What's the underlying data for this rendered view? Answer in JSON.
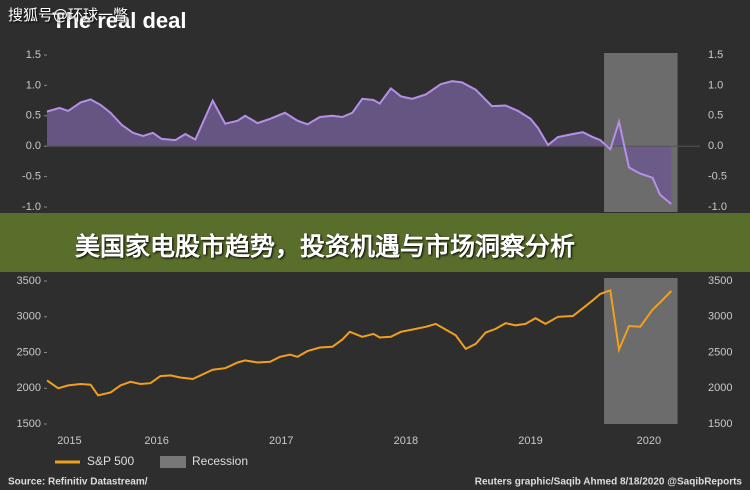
{
  "watermark": "搜狐号@环球一瞥",
  "banner": "美国家电股市趋势，投资机遇与市场洞察分析",
  "source": "Source: Refinitiv Datastream/",
  "credit": "Reuters graphic/Saqib Ahmed 8/18/2020 @SaqibReports",
  "chart_data": [
    {
      "type": "area",
      "title": "The real deal",
      "x": [
        2015.62,
        2015.72,
        2015.79,
        2015.89,
        2015.97,
        2016.05,
        2016.13,
        2016.22,
        2016.31,
        2016.39,
        2016.47,
        2016.54,
        2016.65,
        2016.73,
        2016.81,
        2016.95,
        2017.05,
        2017.15,
        2017.21,
        2017.31,
        2017.41,
        2017.53,
        2017.63,
        2017.71,
        2017.81,
        2017.91,
        2017.99,
        2018.07,
        2018.15,
        2018.24,
        2018.29,
        2018.38,
        2018.46,
        2018.55,
        2018.66,
        2018.78,
        2018.87,
        2018.95,
        2019.06,
        2019.19,
        2019.3,
        2019.4,
        2019.5,
        2019.56,
        2019.64,
        2019.72,
        2019.84,
        2019.92,
        2020.0,
        2020.06,
        2020.14,
        2020.21,
        2020.29,
        2020.38,
        2020.48,
        2020.54,
        2020.63
      ],
      "series": [
        {
          "color": "#b690e6",
          "fill": "#6c5a8c",
          "values": [
            0.57,
            0.63,
            0.58,
            0.72,
            0.77,
            0.68,
            0.55,
            0.35,
            0.22,
            0.17,
            0.22,
            0.12,
            0.1,
            0.2,
            0.11,
            0.75,
            0.37,
            0.42,
            0.5,
            0.38,
            0.45,
            0.55,
            0.42,
            0.36,
            0.48,
            0.5,
            0.48,
            0.55,
            0.78,
            0.76,
            0.7,
            0.95,
            0.82,
            0.78,
            0.85,
            1.02,
            1.07,
            1.05,
            0.93,
            0.66,
            0.67,
            0.58,
            0.45,
            0.3,
            0.02,
            0.15,
            0.2,
            0.23,
            0.15,
            0.1,
            -0.05,
            0.4,
            -0.35,
            -0.45,
            -0.52,
            -0.8,
            -0.95
          ]
        }
      ],
      "shaded_regions": [
        {
          "x": [
            2020.09,
            2020.68
          ],
          "color": "#777777"
        }
      ],
      "xlim": [
        2015.62,
        2020.86
      ],
      "xticks": [
        {
          "value": 2015.8,
          "label": "2015"
        },
        {
          "value": 2016.5,
          "label": "2016"
        },
        {
          "value": 2017.5,
          "label": "2017"
        },
        {
          "value": 2018.5,
          "label": "2018"
        },
        {
          "value": 2019.5,
          "label": "2019"
        },
        {
          "value": 2020.45,
          "label": "2020"
        }
      ],
      "ylim": [
        -1.0,
        1.5
      ],
      "yticks": [
        {
          "value": 1.5,
          "label": "1.5"
        },
        {
          "value": 1.0,
          "label": "1.0"
        },
        {
          "value": 0.5,
          "label": "0.5"
        },
        {
          "value": 0,
          "label": "0.0"
        },
        {
          "value": -0.5,
          "label": "-0.5"
        },
        {
          "value": -1.0,
          "label": "-1.0"
        }
      ],
      "right_axis": true
    },
    {
      "type": "line",
      "x": [
        2015.62,
        2015.71,
        2015.79,
        2015.89,
        2015.97,
        2016.03,
        2016.13,
        2016.21,
        2016.29,
        2016.37,
        2016.45,
        2016.53,
        2016.61,
        2016.69,
        2016.79,
        2016.95,
        2017.05,
        2017.15,
        2017.21,
        2017.31,
        2017.41,
        2017.49,
        2017.57,
        2017.63,
        2017.71,
        2017.81,
        2017.91,
        2017.99,
        2018.05,
        2018.15,
        2018.24,
        2018.29,
        2018.38,
        2018.46,
        2018.55,
        2018.66,
        2018.74,
        2018.82,
        2018.9,
        2018.98,
        2019.06,
        2019.14,
        2019.22,
        2019.3,
        2019.38,
        2019.46,
        2019.54,
        2019.62,
        2019.72,
        2019.84,
        2019.92,
        2020.0,
        2020.06,
        2020.14,
        2020.21,
        2020.29,
        2020.38,
        2020.48,
        2020.54,
        2020.63
      ],
      "series": [
        {
          "name": "S&P 500",
          "color": "#f0a01e",
          "values": [
            2110,
            2000,
            2040,
            2060,
            2050,
            1900,
            1940,
            2040,
            2090,
            2060,
            2070,
            2170,
            2180,
            2150,
            2130,
            2260,
            2280,
            2360,
            2390,
            2360,
            2370,
            2440,
            2470,
            2440,
            2520,
            2570,
            2580,
            2680,
            2790,
            2720,
            2760,
            2710,
            2720,
            2790,
            2820,
            2860,
            2900,
            2820,
            2740,
            2550,
            2620,
            2780,
            2830,
            2910,
            2880,
            2900,
            2980,
            2900,
            3000,
            3010,
            3120,
            3230,
            3320,
            3370,
            2540,
            2870,
            2860,
            3100,
            3200,
            3360
          ]
        }
      ],
      "shaded_regions": [
        {
          "name": "Recession",
          "x": [
            2020.09,
            2020.68
          ],
          "color": "#777777"
        }
      ],
      "xlim": [
        2015.62,
        2020.86
      ],
      "xticks": [
        {
          "value": 2015.8,
          "label": "2015"
        },
        {
          "value": 2016.5,
          "label": "2016"
        },
        {
          "value": 2017.5,
          "label": "2017"
        },
        {
          "value": 2018.5,
          "label": "2018"
        },
        {
          "value": 2019.5,
          "label": "2019"
        },
        {
          "value": 2020.45,
          "label": "2020"
        }
      ],
      "ylim": [
        1500,
        3500
      ],
      "yticks": [
        1500,
        2000,
        2500,
        3000,
        3500
      ],
      "right_axis": true
    }
  ]
}
